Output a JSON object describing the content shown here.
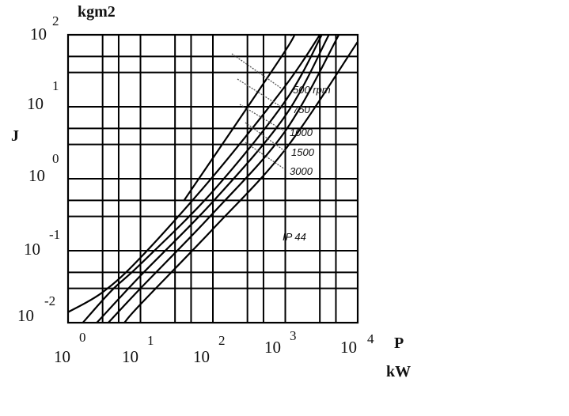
{
  "chart_data": {
    "type": "line",
    "xscale": "log",
    "yscale": "log",
    "xlim": [
      1,
      10000
    ],
    "ylim": [
      0.01,
      100
    ],
    "xlabel_symbol": "P",
    "xlabel_unit": "kW",
    "ylabel_symbol": "J",
    "ylabel_unit": "kgm2",
    "x_ticks": [
      {
        "base": "10",
        "exp": "0"
      },
      {
        "base": "10",
        "exp": "1"
      },
      {
        "base": "10",
        "exp": "2"
      },
      {
        "base": "10",
        "exp": "3"
      },
      {
        "base": "10",
        "exp": "4"
      }
    ],
    "y_ticks": [
      {
        "base": "10",
        "exp": "-2"
      },
      {
        "base": "10",
        "exp": "-1"
      },
      {
        "base": "10",
        "exp": "0"
      },
      {
        "base": "10",
        "exp": "1"
      },
      {
        "base": "10",
        "exp": "2"
      }
    ],
    "annotation": "IP 44",
    "series": [
      {
        "name": "500 rpm",
        "points": [
          [
            1.0,
            0.014
          ],
          [
            3.0,
            0.0265
          ],
          [
            10,
            0.08
          ],
          [
            100,
            1.07
          ],
          [
            1000,
            19.5
          ],
          [
            3000,
            100
          ]
        ]
      },
      {
        "name": "750",
        "points": [
          [
            1.6,
            0.01
          ],
          [
            4.0,
            0.028
          ],
          [
            10,
            0.065
          ],
          [
            100,
            0.67
          ],
          [
            1000,
            12.0
          ],
          [
            3200,
            100
          ]
        ]
      },
      {
        "name": "1000",
        "points": [
          [
            2.5,
            0.01
          ],
          [
            10,
            0.045
          ],
          [
            100,
            0.48
          ],
          [
            1000,
            7.5
          ],
          [
            4000,
            100
          ]
        ]
      },
      {
        "name": "1500",
        "points": [
          [
            3.6,
            0.01
          ],
          [
            10,
            0.03
          ],
          [
            100,
            0.33
          ],
          [
            1000,
            4.6
          ],
          [
            5500,
            100
          ]
        ]
      },
      {
        "name": "3000",
        "points": [
          [
            6.0,
            0.01
          ],
          [
            10,
            0.018
          ],
          [
            100,
            0.2
          ],
          [
            1000,
            2.55
          ],
          [
            10000,
            80
          ]
        ]
      },
      {
        "name": "",
        "points": [
          [
            40,
            0.5
          ],
          [
            1000,
            60
          ],
          [
            1200,
            100
          ]
        ]
      }
    ]
  }
}
